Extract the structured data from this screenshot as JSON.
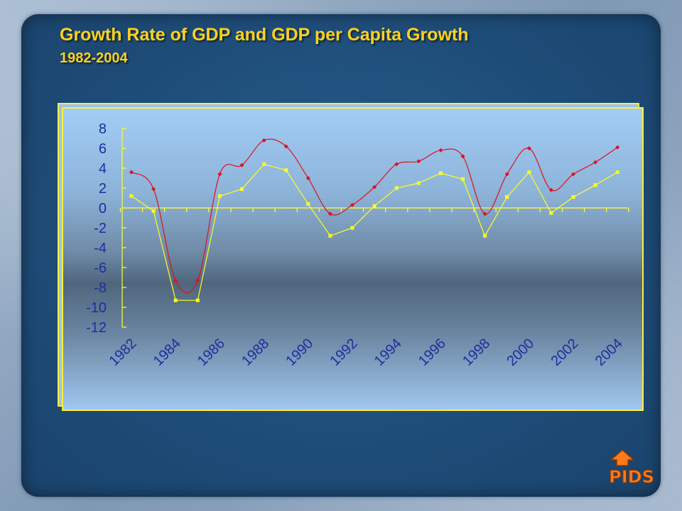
{
  "slide": {
    "title": "Growth Rate of GDP and GDP per Capita Growth",
    "subtitle": "1982-2004"
  },
  "logo": {
    "text": "PIDS",
    "color": "#ff7a1a"
  },
  "chart_data": {
    "type": "line",
    "x": [
      1982,
      1983,
      1984,
      1985,
      1986,
      1987,
      1988,
      1989,
      1990,
      1991,
      1992,
      1993,
      1994,
      1995,
      1996,
      1997,
      1998,
      1999,
      2000,
      2001,
      2002,
      2003,
      2004
    ],
    "x_tick_labels": [
      "1982",
      "1984",
      "1986",
      "1988",
      "1990",
      "1992",
      "1994",
      "1996",
      "1998",
      "2000",
      "2002",
      "2004"
    ],
    "y_tick_labels": [
      "8",
      "6",
      "4",
      "2",
      "0",
      "-2",
      "-4",
      "-6",
      "-8",
      "-10",
      "-12"
    ],
    "ylim": [
      -12,
      8
    ],
    "series": [
      {
        "color": "#e0101e",
        "marker": "diamond",
        "smooth": true,
        "values": [
          3.6,
          1.9,
          -7.3,
          -7.3,
          3.4,
          4.3,
          6.8,
          6.2,
          3.0,
          -0.6,
          0.3,
          2.1,
          4.4,
          4.7,
          5.8,
          5.2,
          -0.6,
          3.4,
          6.0,
          1.8,
          3.4,
          4.6,
          6.1
        ]
      },
      {
        "color": "#ffff1e",
        "marker": "square",
        "smooth": false,
        "values": [
          1.2,
          -0.3,
          -9.3,
          -9.3,
          1.2,
          1.9,
          4.4,
          3.8,
          0.4,
          -2.8,
          -2.0,
          0.2,
          2.0,
          2.5,
          3.5,
          2.9,
          -2.8,
          1.1,
          3.6,
          -0.5,
          1.1,
          2.3,
          3.6
        ]
      }
    ],
    "grid": false,
    "legend": "none"
  }
}
